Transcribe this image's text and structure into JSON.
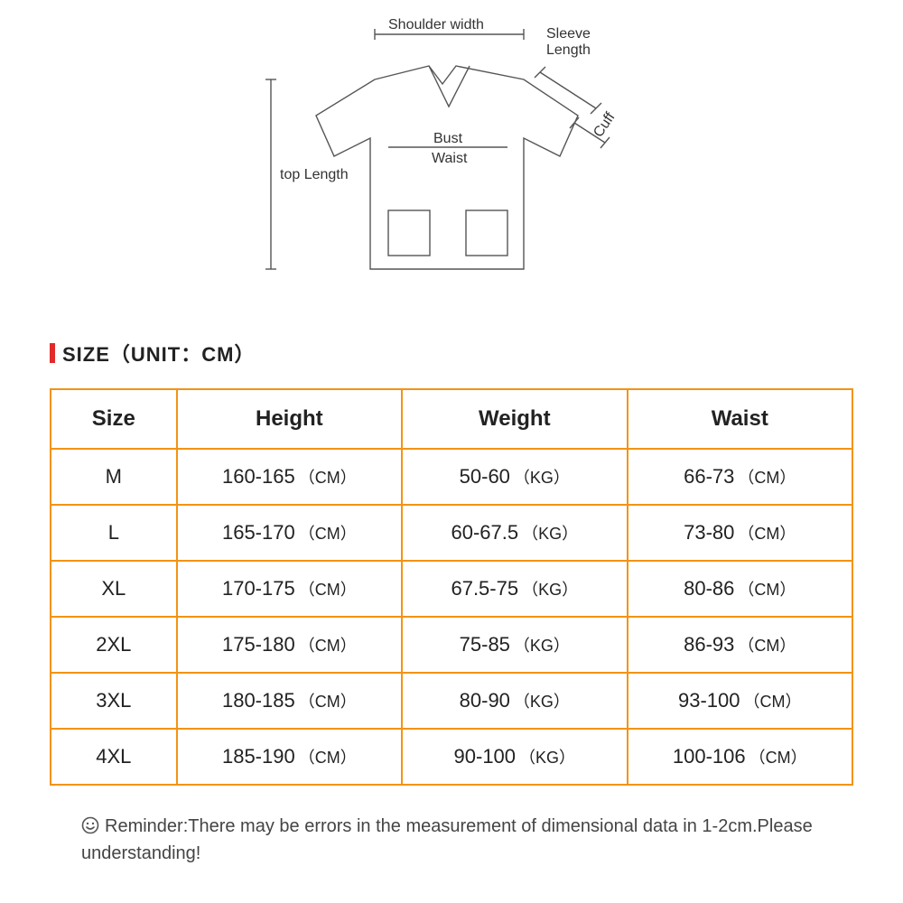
{
  "diagram": {
    "labels": {
      "shoulder_width": "Shoulder width",
      "sleeve_length": "Sleeve",
      "sleeve_length_2": "Length",
      "cuff": "Cuff",
      "bust": "Bust",
      "waist": "Waist",
      "top_length": "top Length"
    },
    "stroke_color": "#555555",
    "stroke_width": 1.4,
    "font_size": 16
  },
  "title": {
    "text": "SIZE（UNIT：CM）",
    "accent_color": "#e12b2b",
    "font_size": 22
  },
  "table": {
    "border_color": "#f39313",
    "columns": [
      "Size",
      "Height",
      "Weight",
      "Waist"
    ],
    "rows": [
      {
        "size": "M",
        "height_val": "160-165",
        "height_unit": "（CM）",
        "weight_val": "50-60",
        "weight_unit": "（KG）",
        "waist_val": "66-73",
        "waist_unit": "（CM）"
      },
      {
        "size": "L",
        "height_val": "165-170",
        "height_unit": "（CM）",
        "weight_val": "60-67.5",
        "weight_unit": "（KG）",
        "waist_val": "73-80",
        "waist_unit": "（CM）"
      },
      {
        "size": "XL",
        "height_val": "170-175",
        "height_unit": "（CM）",
        "weight_val": "67.5-75",
        "weight_unit": "（KG）",
        "waist_val": "80-86",
        "waist_unit": "（CM）"
      },
      {
        "size": "2XL",
        "height_val": "175-180",
        "height_unit": "（CM）",
        "weight_val": "75-85",
        "weight_unit": "（KG）",
        "waist_val": "86-93",
        "waist_unit": "（CM）"
      },
      {
        "size": "3XL",
        "height_val": "180-185",
        "height_unit": "（CM）",
        "weight_val": "80-90",
        "weight_unit": "（KG）",
        "waist_val": "93-100",
        "waist_unit": "（CM）"
      },
      {
        "size": "4XL",
        "height_val": "185-190",
        "height_unit": "（CM）",
        "weight_val": "90-100",
        "weight_unit": "（KG）",
        "waist_val": "100-106",
        "waist_unit": "（CM）"
      }
    ]
  },
  "reminder": {
    "text": "Reminder:There may be errors in the measurement of dimensional data in 1-2cm.Please understanding!",
    "icon": "smile"
  },
  "colors": {
    "background": "#ffffff",
    "text": "#222222",
    "reminder_text": "#444444"
  }
}
